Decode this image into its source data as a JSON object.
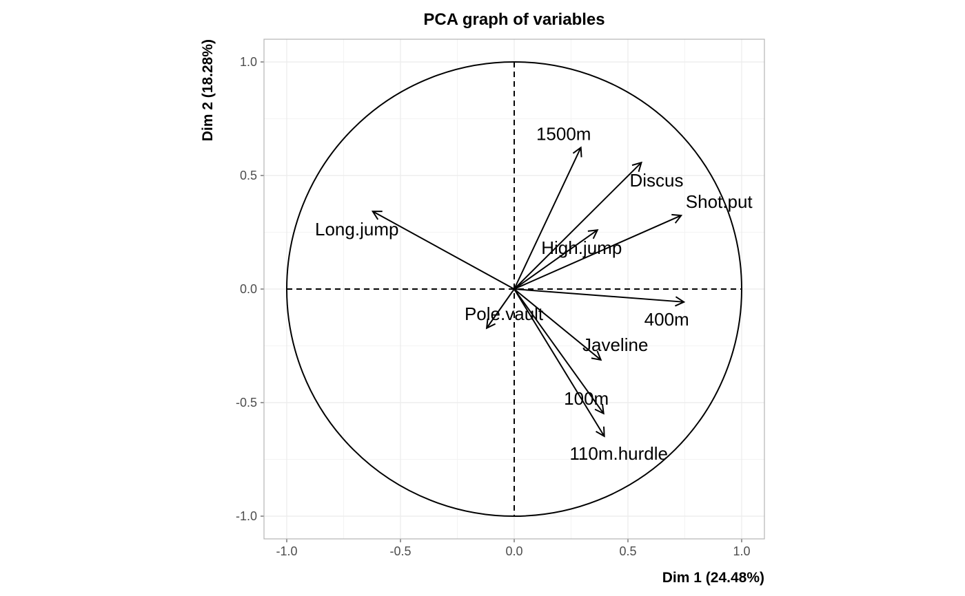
{
  "chart_data": {
    "type": "scatter",
    "subtype": "pca-correlation-circle",
    "title": "PCA graph of variables",
    "xlabel": "Dim 1 (24.48%)",
    "ylabel": "Dim 2 (18.28%)",
    "xlim": [
      -1.1,
      1.1
    ],
    "ylim": [
      -1.1,
      1.1
    ],
    "xticks": [
      -1.0,
      -0.5,
      0.0,
      0.5,
      1.0
    ],
    "yticks": [
      -1.0,
      -0.5,
      0.0,
      0.5,
      1.0
    ],
    "xtick_labels": [
      "-1.0",
      "-0.5",
      "0.0",
      "0.5",
      "1.0"
    ],
    "ytick_labels": [
      "-1.0",
      "-0.5",
      "0.0",
      "0.5",
      "1.0"
    ],
    "grid": true,
    "circle_radius": 1,
    "variables": [
      {
        "name": "1500m",
        "x": 0.293,
        "y": 0.623
      },
      {
        "name": "Discus",
        "x": 0.559,
        "y": 0.557
      },
      {
        "name": "Shot.put",
        "x": 0.734,
        "y": 0.324
      },
      {
        "name": "High.jump",
        "x": 0.366,
        "y": 0.26
      },
      {
        "name": "Long.jump",
        "x": -0.622,
        "y": 0.342
      },
      {
        "name": "400m",
        "x": 0.746,
        "y": -0.057
      },
      {
        "name": "Pole.vault",
        "x": -0.121,
        "y": -0.172
      },
      {
        "name": "Javeline",
        "x": 0.381,
        "y": -0.312
      },
      {
        "name": "100m",
        "x": 0.393,
        "y": -0.548
      },
      {
        "name": "110m.hurdle",
        "x": 0.396,
        "y": -0.648
      }
    ],
    "colors": {
      "arrow": "#000000",
      "grid": "#ebebeb",
      "panel_border": "#b3b3b3"
    }
  }
}
